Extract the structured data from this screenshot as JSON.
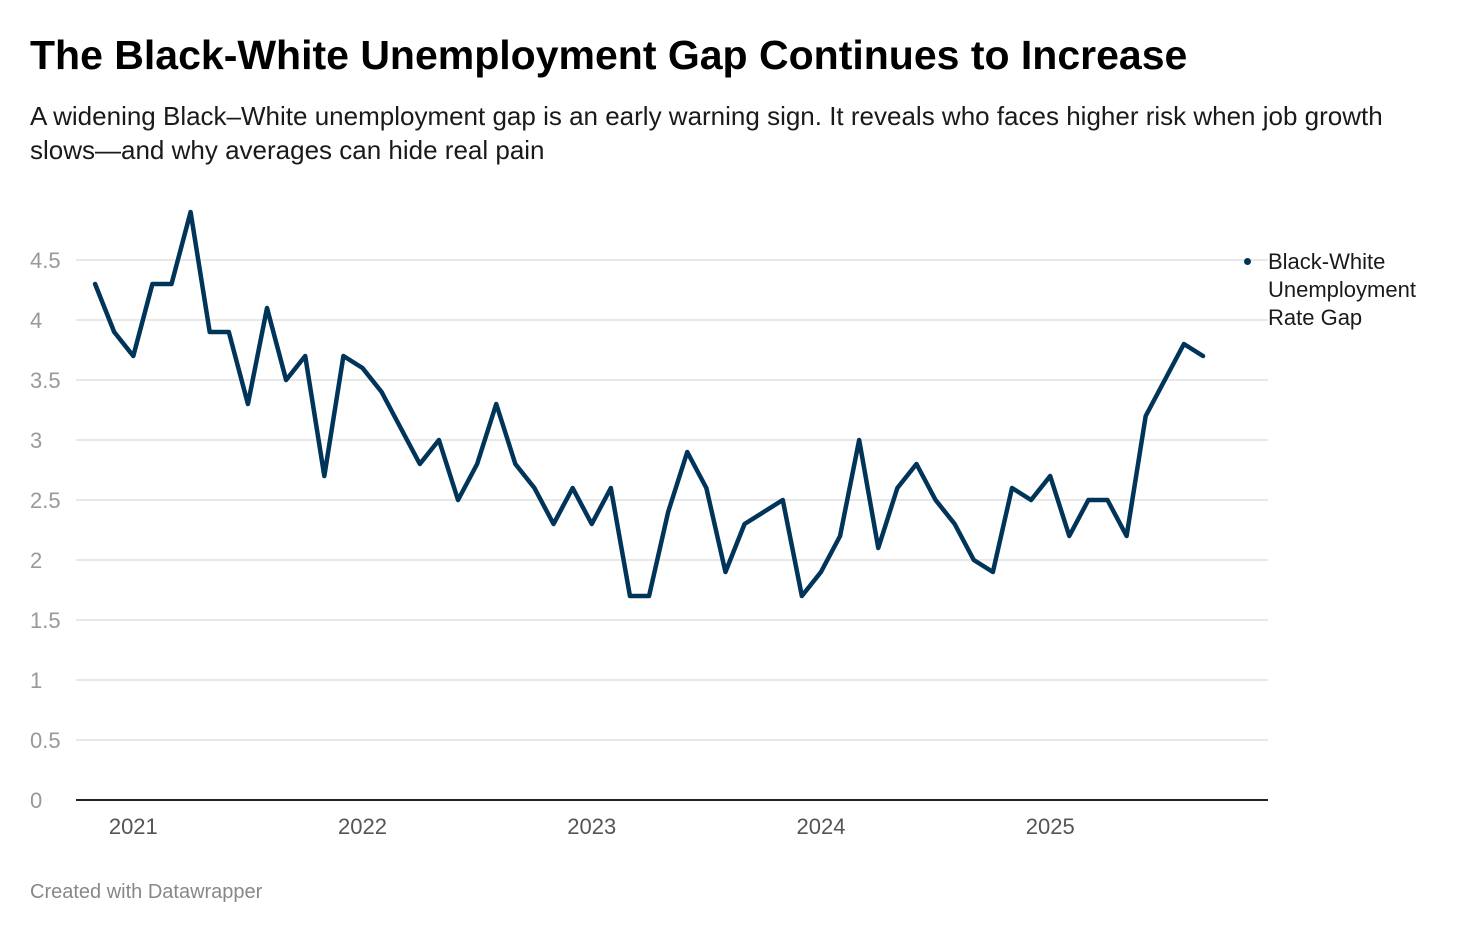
{
  "chart_data": {
    "type": "line",
    "title": "The Black-White Unemployment Gap Continues to Increase",
    "subtitle": "A widening Black–White unemployment gap is an early warning sign. It reveals who faces higher risk when job growth slows—and why averages can hide real pain",
    "xlabel": "",
    "ylabel": "",
    "ylim": [
      0,
      5
    ],
    "yticks": [
      {
        "value": 0,
        "label": "0"
      },
      {
        "value": 0.5,
        "label": "0.5"
      },
      {
        "value": 1,
        "label": "1"
      },
      {
        "value": 1.5,
        "label": "1.5"
      },
      {
        "value": 2,
        "label": "2"
      },
      {
        "value": 2.5,
        "label": "2.5"
      },
      {
        "value": 3,
        "label": "3"
      },
      {
        "value": 3.5,
        "label": "3.5"
      },
      {
        "value": 4,
        "label": "4"
      },
      {
        "value": 4.5,
        "label": "4.5"
      }
    ],
    "xlim": [
      2020.75,
      2025.95
    ],
    "xticks": [
      {
        "value": 2021.0,
        "label": "2021"
      },
      {
        "value": 2022.0,
        "label": "2022"
      },
      {
        "value": 2023.0,
        "label": "2023"
      },
      {
        "value": 2024.0,
        "label": "2024"
      },
      {
        "value": 2025.0,
        "label": "2025"
      }
    ],
    "grid": true,
    "legend_position": "right",
    "series": [
      {
        "name": "Black-White Unemployment Rate Gap",
        "color": "#003459",
        "start": 2020.8333,
        "step": 0.08333,
        "values": [
          4.3,
          3.9,
          3.7,
          4.3,
          4.3,
          4.9,
          3.9,
          3.9,
          3.3,
          4.1,
          3.5,
          3.7,
          2.7,
          3.7,
          3.6,
          3.4,
          3.1,
          2.8,
          3.0,
          2.5,
          2.8,
          3.3,
          2.8,
          2.6,
          2.3,
          2.6,
          2.3,
          2.6,
          1.7,
          1.7,
          2.4,
          2.9,
          2.6,
          1.9,
          2.3,
          2.4,
          2.5,
          1.7,
          1.9,
          2.2,
          3.0,
          2.1,
          2.6,
          2.8,
          2.5,
          2.3,
          2.0,
          1.9,
          2.6,
          2.5,
          2.7,
          2.2,
          2.5,
          2.5,
          2.2,
          3.2,
          3.5,
          3.8,
          3.7
        ]
      }
    ]
  },
  "footer": {
    "credit": "Created with Datawrapper"
  },
  "colors": {
    "line": "#003459",
    "grid": "#e0e0e0",
    "axis": "#222222",
    "tick_label": "#999999",
    "x_tick_label": "#555555"
  }
}
